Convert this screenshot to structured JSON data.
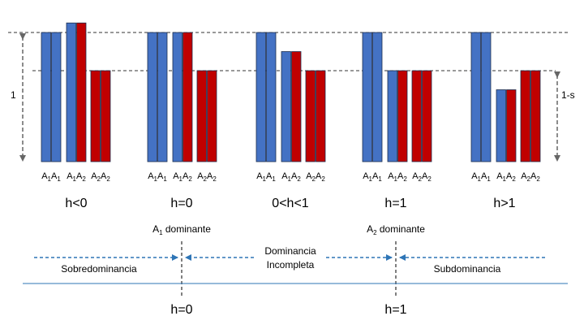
{
  "colors": {
    "blue": "#4472C4",
    "red": "#C00000",
    "outline": "#1F2F4F",
    "dashed_line": "#333333",
    "scale_arrow": "#666666",
    "axis_line": "#2E75B6",
    "scale_arrow_blue": "#2E75B6"
  },
  "scale": {
    "left_label": "1",
    "right_label": "1-s"
  },
  "genotype_labels": {
    "a1a1": {
      "base1": "A",
      "sub1": "1",
      "base2": "A",
      "sub2": "1"
    },
    "a1a2": {
      "base1": "A",
      "sub1": "1",
      "base2": "A",
      "sub2": "2"
    },
    "a2a2": {
      "base1": "A",
      "sub1": "2",
      "base2": "A",
      "sub2": "2"
    }
  },
  "groups": [
    {
      "label": "h<0",
      "heights": {
        "a1a1": 1.0,
        "a1a2": 1.25,
        "a2a2": 0.0
      }
    },
    {
      "label": "h=0",
      "heights": {
        "a1a1": 1.0,
        "a1a2": 1.0,
        "a2a2": 0.0
      }
    },
    {
      "label": "0<h<1",
      "heights": {
        "a1a1": 1.0,
        "a1a2": 0.5,
        "a2a2": 0.0
      }
    },
    {
      "label": "h=1",
      "heights": {
        "a1a1": 1.0,
        "a1a2": 0.0,
        "a2a2": 0.0
      }
    },
    {
      "label": "h>1",
      "heights": {
        "a1a1": 1.0,
        "a1a2": -0.5,
        "a2a2": 0.0
      }
    }
  ],
  "dominance": {
    "a1_dominant": {
      "base": "A",
      "sub": "1",
      "rest": " dominante"
    },
    "a2_dominant": {
      "base": "A",
      "sub": "2",
      "rest": " dominante"
    },
    "sobredominancia": "Sobredominancia",
    "incompleta_line1": "Dominancia",
    "incompleta_line2": "Incompleta",
    "subdominancia": "Subdominancia"
  },
  "bottom_labels": {
    "h0": "h=0",
    "h1": "h=1"
  }
}
